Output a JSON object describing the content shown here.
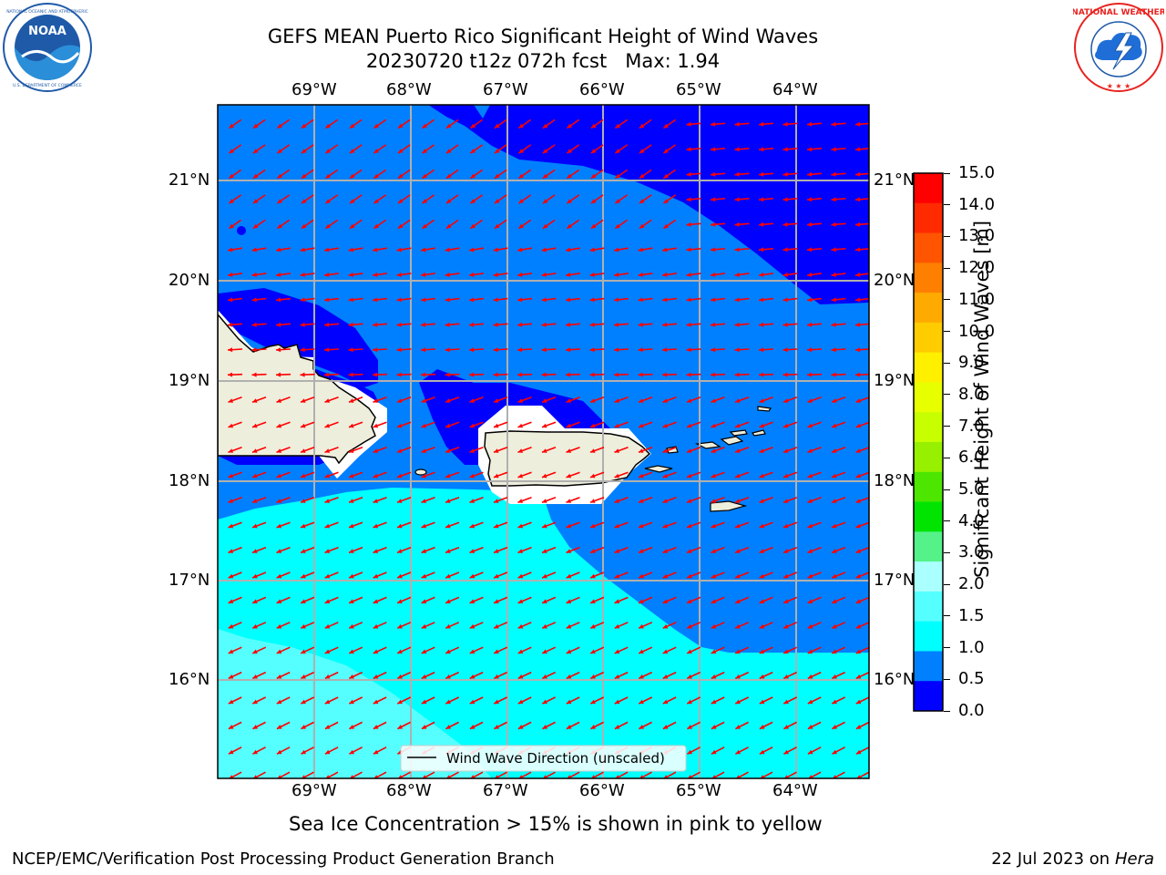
{
  "header": {
    "title_line1": "GEFS MEAN Puerto Rico Significant Height of Wind Waves",
    "title_line2": "20230720 t12z 072h fcst   Max: 1.94"
  },
  "logos": {
    "left": {
      "text": "NOAA",
      "ring_top": "NATIONAL OCEANIC AND ATMOSPHERIC ADMINISTRATION",
      "ring_bottom": "U.S. DEPARTMENT OF COMMERCE",
      "color": "#1f5aa8"
    },
    "right": {
      "ring_text": "NATIONAL WEATHER SERVICE",
      "color": "#e8231f"
    }
  },
  "map": {
    "lon_labels": [
      "69°W",
      "68°W",
      "67°W",
      "66°W",
      "65°W",
      "64°W"
    ],
    "lat_labels": [
      "21°N",
      "20°N",
      "19°N",
      "18°N",
      "17°N",
      "16°N"
    ],
    "legend_label": "Wind Wave Direction (unscaled)",
    "arrow_color": "#ff0000",
    "land_color": "#eeeedd"
  },
  "colorbar": {
    "label": "Significant Height of Wind Waves [m]",
    "ticks": [
      "15.0",
      "14.0",
      "13.0",
      "12.0",
      "11.0",
      "10.0",
      "9.0",
      "8.0",
      "7.0",
      "6.0",
      "5.0",
      "4.0",
      "3.0",
      "2.0",
      "1.5",
      "1.0",
      "0.5",
      "0.0"
    ],
    "colors_top_to_bottom": [
      "#ff0000",
      "#ff2800",
      "#ff5000",
      "#ff7800",
      "#ff9600",
      "#ffb400",
      "#ffd200",
      "#fff000",
      "#e6ff00",
      "#c8ff00",
      "#96ff00",
      "#50ff00",
      "#00ee00",
      "#00e28a",
      "#50f0f0",
      "#a0ffff",
      "#00ffff",
      "#0080ff",
      "#0000ff"
    ],
    "bands_top_to_bottom": [
      {
        "color": "#ff0000"
      },
      {
        "color": "#ff2a00"
      },
      {
        "color": "#ff5500"
      },
      {
        "color": "#ff7f00"
      },
      {
        "color": "#ffaa00"
      },
      {
        "color": "#ffcc00"
      },
      {
        "color": "#fff000"
      },
      {
        "color": "#e8ff00"
      },
      {
        "color": "#c8ff00"
      },
      {
        "color": "#96f000"
      },
      {
        "color": "#4ce600"
      },
      {
        "color": "#00e400"
      },
      {
        "color": "#55f28a"
      },
      {
        "color": "#aaffff"
      },
      {
        "color": "#55ffff"
      },
      {
        "color": "#00ffff"
      },
      {
        "color": "#0080ff"
      },
      {
        "color": "#0000ff"
      }
    ]
  },
  "captions": {
    "sea_ice": "Sea Ice Concentration > 15% is shown in pink to yellow",
    "footer_left": "NCEP/EMC/Verification Post Processing Product Generation Branch",
    "footer_right_prefix": "22 Jul 2023 on ",
    "footer_right_machine": "Hera"
  }
}
